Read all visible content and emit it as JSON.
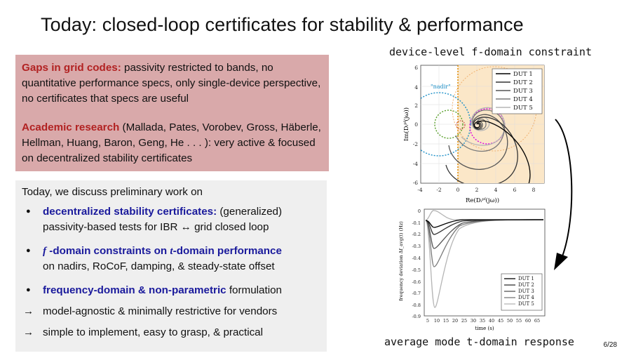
{
  "slide": {
    "title": "Today: closed-loop certificates for stability & performance",
    "page_number": "6/28"
  },
  "gaps": {
    "heading": "Gaps in grid codes:",
    "text": " passivity restricted to bands, no quantitative performance specs, only single-device perspective, no certificates that specs are useful"
  },
  "academic": {
    "heading": "Academic research",
    "text": " (Mallada, Pates, Vorobev, Gross, Häberle, Hellman, Huang, Baron, Geng, He . . . ): very active & focused on decentralized stability certificates"
  },
  "today": {
    "intro": "Today, we discuss preliminary work on",
    "b1_bold": "decentralized stability certificates:",
    "b1_rest": " (generalized)",
    "b1_line2": "passivity-based tests for IBR ↔ grid closed loop",
    "b2_f": "f",
    "b2_bold_mid": " -domain constraints on ",
    "b2_t": "t",
    "b2_bold_end": "-domain performance",
    "b2_line2": "on nadirs, RoCoF, damping, & steady-state offset",
    "b3_bold": "frequency-domain & non-parametric",
    "b3_rest": " formulation",
    "arrow": "→",
    "arrow1": "model-agnostic & minimally restrictive for vendors",
    "arrow2": "simple to implement, easy to grasp, & practical"
  },
  "fig1": {
    "caption": "device-level f-domain constraint",
    "nadir_label": "\"nadir\"",
    "ylabel": "Im(Dᵢᵖᶠ(jω))",
    "xlabel": "Re(Dᵢᵖᶠ(jω))",
    "xticks": [
      "-4",
      "-2",
      "0",
      "2",
      "4",
      "6",
      "8"
    ],
    "yticks": [
      "6",
      "4",
      "2",
      "0",
      "-2",
      "-4",
      "-6"
    ],
    "legend": [
      "DUT 1",
      "DUT 2",
      "DUT 3",
      "DUT 4",
      "DUT 5"
    ]
  },
  "fig2": {
    "caption": "average mode t-domain response",
    "ylabel": "frequency deviation Δf_avg(t) (Hz)",
    "xlabel": "time (s)",
    "xticks": [
      "5",
      "10",
      "15",
      "20",
      "25",
      "30",
      "35",
      "40",
      "45",
      "50",
      "55",
      "60",
      "65"
    ],
    "yticks": [
      "0",
      "-0.1",
      "-0.2",
      "-0.3",
      "-0.4",
      "-0.5",
      "-0.6",
      "-0.7",
      "-0.8",
      "-0.9"
    ],
    "legend": [
      "DUT 1",
      "DUT 2",
      "DUT 3",
      "DUT 4",
      "DUT 5"
    ]
  },
  "colors": {
    "red_heading": "#b22222",
    "blue_bold": "#1a1a9c",
    "red_box": "#d9a9aa",
    "gray_box": "#efefef",
    "dut_shades": [
      "#000000",
      "#333333",
      "#555555",
      "#7a7a7a",
      "#b5b5b5"
    ]
  }
}
